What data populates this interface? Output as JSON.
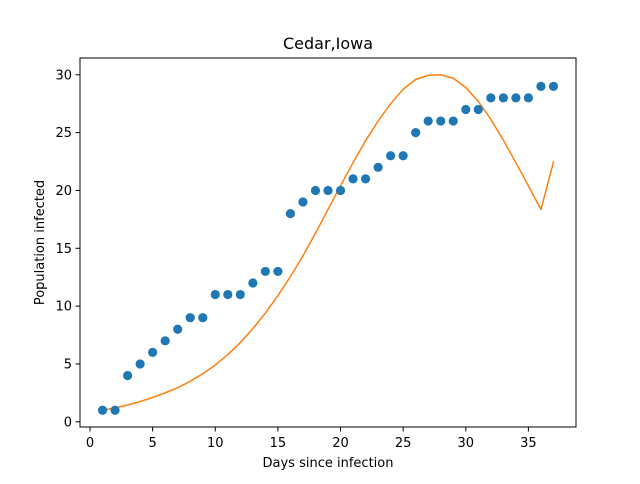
{
  "chart_data": {
    "type": "scatter",
    "title": "Cedar,Iowa",
    "xlabel": "Days since infection",
    "ylabel": "Population infected",
    "xlim": [
      -0.8,
      38.8
    ],
    "ylim": [
      -0.45,
      31.45
    ],
    "xticks": [
      0,
      5,
      10,
      15,
      20,
      25,
      30,
      35
    ],
    "yticks": [
      0,
      5,
      10,
      15,
      20,
      25,
      30
    ],
    "grid": false,
    "series": [
      {
        "kind": "scatter",
        "color": "#1f77b4",
        "x": [
          1,
          2,
          3,
          4,
          5,
          6,
          7,
          8,
          9,
          10,
          11,
          12,
          13,
          14,
          15,
          16,
          17,
          18,
          19,
          20,
          21,
          22,
          23,
          24,
          25,
          26,
          27,
          28,
          29,
          30,
          31,
          32,
          33,
          34,
          35,
          36,
          37
        ],
        "y": [
          1,
          1,
          4,
          5,
          6,
          7,
          8,
          9,
          9,
          11,
          11,
          11,
          12,
          13,
          13,
          18,
          19,
          20,
          20,
          20,
          21,
          21,
          22,
          23,
          23,
          25,
          26,
          26,
          26,
          27,
          27,
          28,
          28,
          28,
          28,
          29,
          29
        ]
      },
      {
        "kind": "line",
        "color": "#ff7f0e",
        "x": [
          1,
          2,
          3,
          4,
          5,
          6,
          7,
          8,
          9,
          10,
          11,
          12,
          13,
          14,
          15,
          16,
          17,
          18,
          19,
          20,
          21,
          22,
          23,
          24,
          25,
          26,
          27,
          28,
          29,
          30,
          31,
          32,
          33,
          34,
          35,
          36,
          37
        ],
        "y": [
          1.0,
          1.2,
          1.45,
          1.75,
          2.1,
          2.5,
          2.95,
          3.5,
          4.15,
          4.9,
          5.8,
          6.85,
          8.05,
          9.4,
          10.9,
          12.55,
          14.35,
          16.3,
          18.35,
          20.4,
          22.4,
          24.3,
          26.0,
          27.5,
          28.75,
          29.6,
          29.95,
          30.0,
          29.7,
          28.9,
          27.7,
          26.15,
          24.35,
          22.4,
          20.4,
          18.35,
          22.45
        ]
      }
    ]
  }
}
